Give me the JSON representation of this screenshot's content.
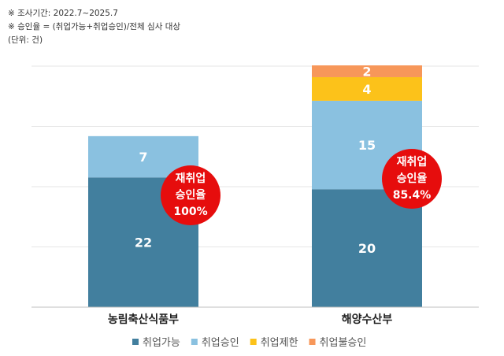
{
  "notes": {
    "survey_period": "※ 조사기간: 2022.7~2025.7",
    "approval_def": "※ 승인율 = (취업가능+취업승인)/전체 심사 대상",
    "unit": "(단위: 건)"
  },
  "chart_data": {
    "type": "bar",
    "stacked": true,
    "categories": [
      "농림축산식품부",
      "해양수산부"
    ],
    "series": [
      {
        "name": "취업가능",
        "values": [
          22,
          20
        ],
        "color": "#427f9e"
      },
      {
        "name": "취업승인",
        "values": [
          7,
          15
        ],
        "color": "#8ac1e0"
      },
      {
        "name": "취업제한",
        "values": [
          0,
          4
        ],
        "color": "#fcc21a"
      },
      {
        "name": "취업불승인",
        "values": [
          0,
          2
        ],
        "color": "#f7975a"
      }
    ],
    "ylim": [
      0,
      41
    ],
    "grid": true,
    "legend_position": "bottom",
    "annotations": [
      {
        "category": "농림축산식품부",
        "lines": [
          "재취업",
          "승인율",
          "100%"
        ],
        "color": "#e60d0d"
      },
      {
        "category": "해양수산부",
        "lines": [
          "재취업",
          "승인율",
          "85.4%"
        ],
        "color": "#e60d0d"
      }
    ]
  }
}
